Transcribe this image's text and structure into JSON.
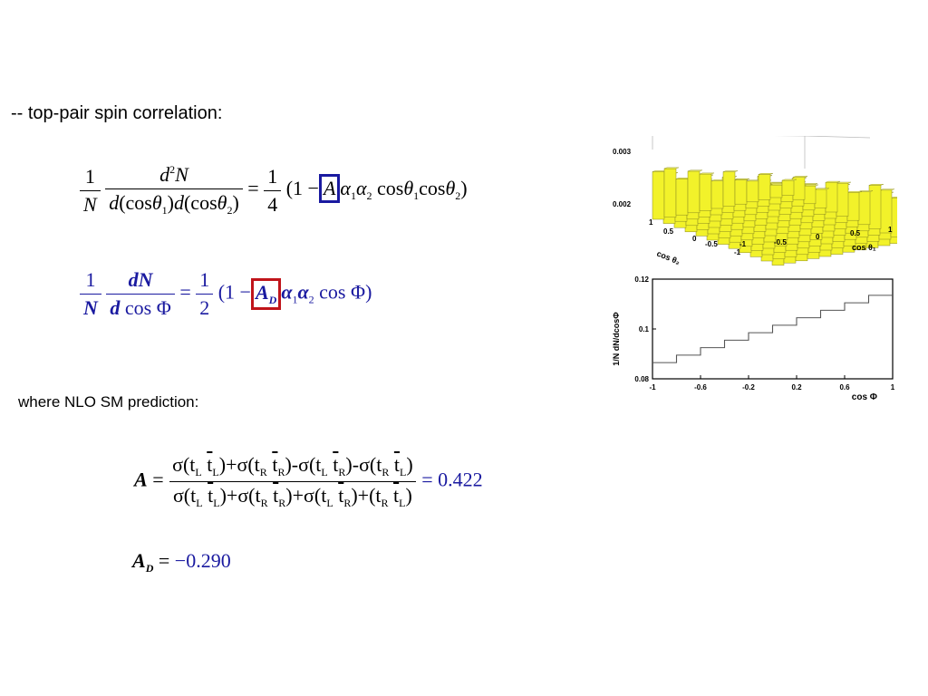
{
  "slide": {
    "bullet_text": "-- top-pair spin correlation:",
    "nlo_text": "where NLO SM prediction:"
  },
  "eq1": {
    "one": "1",
    "N": "N",
    "d2N_d": "d",
    "d2N_sup": "2",
    "d2N_N": "N",
    "den_d1": "d",
    "den_cos1": "(cos",
    "den_theta1": "θ",
    "den_sub1": "1",
    "den_close1": ")",
    "den_d2": "d",
    "den_cos2": "(cos",
    "den_theta2": "θ",
    "den_sub2": "2",
    "den_close2": ")",
    "equals": "=",
    "rhs_one": "1",
    "rhs_four": "4",
    "open": "(1 −",
    "A": "A",
    "alpha": "α",
    "s1": "1",
    "s2": "2",
    "cos_a": "cos",
    "theta": "θ",
    "cos_b": "cos",
    "close": ")",
    "box_color": "#1a1aa0"
  },
  "eq2": {
    "one": "1",
    "N": "N",
    "dN": "dN",
    "d": "d",
    "cosPhi": "cos Φ",
    "equals": "=",
    "rhs_one": "1",
    "rhs_two": "2",
    "open": "(1 −",
    "A": "A",
    "D": "D",
    "alpha": "α",
    "s1": "1",
    "s2": "2",
    "tail": "cos Φ)",
    "color": "#1a1aa0",
    "box_color": "#c0141a"
  },
  "eq3": {
    "A": "A",
    "equals": "=",
    "numer": "σ(t_L t̄_L)+σ(t_R t̄_R)-σ(t_L t̄_R)-σ(t_R t̄_L)",
    "denom": "σ(t_L t̄_L)+σ(t_R t̄_R)+σ(t_L t̄_R)+(t_R t̄_L)",
    "sigma": "σ",
    "t": "t",
    "L": "L",
    "R": "R",
    "plus": "+",
    "minus": "-",
    "open": "(",
    "close": ")",
    "result": "= 0.422",
    "result_color": "#1a1aa0"
  },
  "eq4": {
    "A": "A",
    "D": "D",
    "equals": "=",
    "value": "−0.290",
    "value_color": "#1a1aa0"
  },
  "plot3d": {
    "z_ticks": [
      "0.003",
      "0.002"
    ],
    "x_ticks": [
      "1",
      "0.5",
      "0",
      "-0.5",
      "-1"
    ],
    "y_ticks": [
      "-1",
      "-0.5",
      "0",
      "0.5",
      "1"
    ],
    "x_label": "cos θ₂",
    "y_label": "cos θ₁",
    "fill": "#f2f22a"
  },
  "chart_data": {
    "type": "line",
    "x_ticks": [
      "-1",
      "-0.6",
      "-0.2",
      "0.2",
      "0.6",
      "1"
    ],
    "y_ticks": [
      "0.12",
      "0.1",
      "0.08"
    ],
    "xlabel": "cos Φ",
    "ylabel": "1/N dN/dcosΦ",
    "xlim": [
      -1,
      1
    ],
    "ylim": [
      0.08,
      0.12
    ],
    "bin_edges": [
      -1.0,
      -0.8,
      -0.6,
      -0.4,
      -0.2,
      0.0,
      0.2,
      0.4,
      0.6,
      0.8,
      1.0
    ],
    "values": [
      0.0865,
      0.0895,
      0.0925,
      0.0955,
      0.0985,
      0.1015,
      0.1045,
      0.1075,
      0.1105,
      0.1135
    ]
  }
}
